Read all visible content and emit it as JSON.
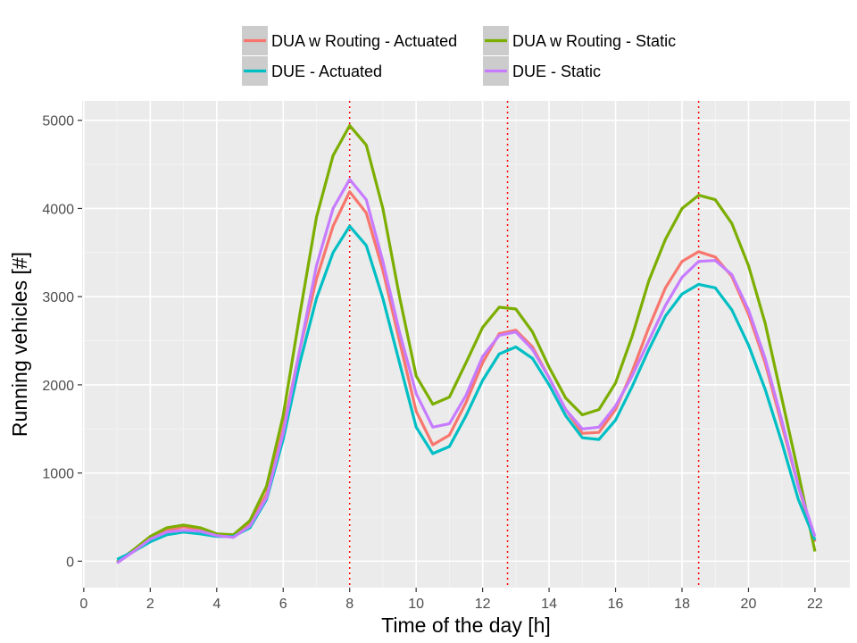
{
  "chart_data": {
    "type": "line",
    "xlabel": "Time of the day [h]",
    "ylabel": "Running vehicles [#]",
    "xlim": [
      -0.05,
      23.05
    ],
    "ylim": [
      -300,
      5220
    ],
    "x_ticks": [
      0,
      2,
      4,
      6,
      8,
      10,
      12,
      14,
      16,
      18,
      20,
      22
    ],
    "x_tick_labels": [
      "0",
      "2",
      "4",
      "6",
      "8",
      "10",
      "12",
      "14",
      "16",
      "18",
      "20",
      "22"
    ],
    "y_ticks": [
      0,
      1000,
      2000,
      3000,
      4000,
      5000
    ],
    "y_tick_labels": [
      "0",
      "1000",
      "2000",
      "3000",
      "4000",
      "5000"
    ],
    "grid": true,
    "legend_position": "top",
    "vlines": [
      8,
      12.75,
      18.5
    ],
    "vline_color": "#ff0000",
    "series": [
      {
        "name": "DUA w Routing - Actuated",
        "color": "#f8766d",
        "x": [
          1,
          1.5,
          2,
          2.5,
          3,
          3.5,
          4,
          4.5,
          5,
          5.5,
          6,
          6.5,
          7,
          7.5,
          8,
          8.5,
          9,
          9.5,
          10,
          10.5,
          11,
          11.5,
          12,
          12.5,
          13,
          13.5,
          14,
          14.5,
          15,
          15.5,
          16,
          16.5,
          17,
          17.5,
          18,
          18.5,
          19,
          19.5,
          20,
          20.5,
          21,
          21.5,
          22
        ],
        "y": [
          -10,
          120,
          260,
          350,
          390,
          360,
          300,
          290,
          420,
          760,
          1500,
          2400,
          3200,
          3800,
          4190,
          3950,
          3300,
          2500,
          1700,
          1320,
          1430,
          1800,
          2250,
          2580,
          2620,
          2430,
          2080,
          1720,
          1450,
          1460,
          1720,
          2150,
          2650,
          3100,
          3400,
          3510,
          3450,
          3230,
          2800,
          2250,
          1550,
          850,
          220
        ]
      },
      {
        "name": "DUA w Routing - Static",
        "color": "#7cae00",
        "x": [
          1,
          1.5,
          2,
          2.5,
          3,
          3.5,
          4,
          4.5,
          5,
          5.5,
          6,
          6.5,
          7,
          7.5,
          8,
          8.5,
          9,
          9.5,
          10,
          10.5,
          11,
          11.5,
          12,
          12.5,
          13,
          13.5,
          14,
          14.5,
          15,
          15.5,
          16,
          16.5,
          17,
          17.5,
          18,
          18.5,
          19,
          19.5,
          20,
          20.5,
          21,
          21.5,
          22
        ],
        "y": [
          -10,
          130,
          280,
          380,
          410,
          380,
          310,
          300,
          460,
          850,
          1650,
          2800,
          3900,
          4600,
          4940,
          4720,
          4000,
          3000,
          2100,
          1780,
          1860,
          2250,
          2650,
          2880,
          2860,
          2600,
          2200,
          1850,
          1660,
          1720,
          2020,
          2550,
          3180,
          3650,
          4000,
          4150,
          4100,
          3830,
          3350,
          2700,
          1850,
          1000,
          110
        ]
      },
      {
        "name": "DUE - Actuated",
        "color": "#00bfc4",
        "x": [
          1,
          1.5,
          2,
          2.5,
          3,
          3.5,
          4,
          4.5,
          5,
          5.5,
          6,
          6.5,
          7,
          7.5,
          8,
          8.5,
          9,
          9.5,
          10,
          10.5,
          11,
          11.5,
          12,
          12.5,
          13,
          13.5,
          14,
          14.5,
          15,
          15.5,
          16,
          16.5,
          17,
          17.5,
          18,
          18.5,
          19,
          19.5,
          20,
          20.5,
          21,
          21.5,
          22
        ],
        "y": [
          20,
          110,
          220,
          300,
          330,
          310,
          280,
          280,
          380,
          700,
          1380,
          2250,
          2980,
          3500,
          3800,
          3580,
          2980,
          2250,
          1520,
          1220,
          1300,
          1650,
          2050,
          2350,
          2430,
          2300,
          2000,
          1650,
          1400,
          1380,
          1600,
          1980,
          2400,
          2780,
          3030,
          3140,
          3100,
          2850,
          2450,
          1950,
          1350,
          700,
          240
        ]
      },
      {
        "name": "DUE - Static",
        "color": "#c77cff",
        "x": [
          1,
          1.5,
          2,
          2.5,
          3,
          3.5,
          4,
          4.5,
          5,
          5.5,
          6,
          6.5,
          7,
          7.5,
          8,
          8.5,
          9,
          9.5,
          10,
          10.5,
          11,
          11.5,
          12,
          12.5,
          13,
          13.5,
          14,
          14.5,
          15,
          15.5,
          16,
          16.5,
          17,
          17.5,
          18,
          18.5,
          19,
          19.5,
          20,
          20.5,
          21,
          21.5,
          22
        ],
        "y": [
          -20,
          110,
          250,
          330,
          350,
          340,
          290,
          270,
          400,
          720,
          1450,
          2400,
          3350,
          4000,
          4330,
          4100,
          3400,
          2600,
          1900,
          1520,
          1560,
          1880,
          2320,
          2560,
          2600,
          2400,
          2080,
          1720,
          1500,
          1520,
          1760,
          2100,
          2500,
          2900,
          3220,
          3400,
          3410,
          3250,
          2850,
          2300,
          1600,
          850,
          280
        ]
      }
    ]
  }
}
